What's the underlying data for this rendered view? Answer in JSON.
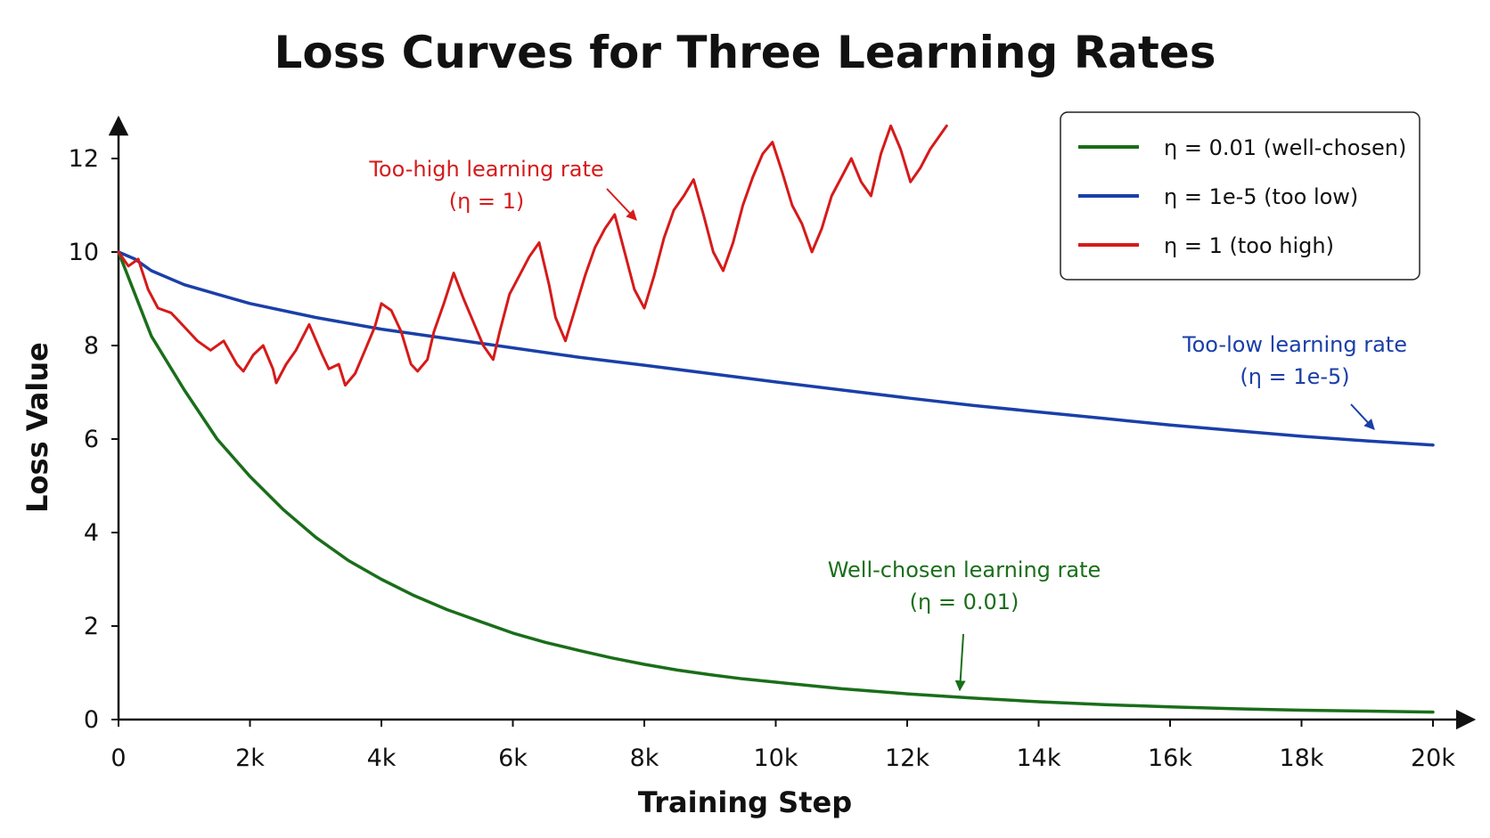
{
  "chart_data": {
    "type": "line",
    "title": "Loss Curves for Three Learning Rates",
    "xlabel": "Training Step",
    "ylabel": "Loss Value",
    "xlim": [
      0,
      20000
    ],
    "ylim": [
      0,
      13
    ],
    "x_ticks": [
      {
        "value": 0,
        "label": "0"
      },
      {
        "value": 2000,
        "label": "2k"
      },
      {
        "value": 4000,
        "label": "4k"
      },
      {
        "value": 6000,
        "label": "6k"
      },
      {
        "value": 8000,
        "label": "8k"
      },
      {
        "value": 10000,
        "label": "10k"
      },
      {
        "value": 12000,
        "label": "12k"
      },
      {
        "value": 14000,
        "label": "14k"
      },
      {
        "value": 16000,
        "label": "16k"
      },
      {
        "value": 18000,
        "label": "18k"
      },
      {
        "value": 20000,
        "label": "20k"
      }
    ],
    "y_ticks": [
      {
        "value": 0,
        "label": "0"
      },
      {
        "value": 2,
        "label": "2"
      },
      {
        "value": 4,
        "label": "4"
      },
      {
        "value": 6,
        "label": "6"
      },
      {
        "value": 8,
        "label": "8"
      },
      {
        "value": 10,
        "label": "10"
      },
      {
        "value": 12,
        "label": "12"
      }
    ],
    "grid": false,
    "legend_position": "top-right",
    "series": [
      {
        "name": "η = 0.01 (well-chosen)",
        "color": "#1a6e1a",
        "x": [
          0,
          500,
          1000,
          1500,
          2000,
          2500,
          3000,
          3500,
          4000,
          4500,
          5000,
          5500,
          6000,
          6500,
          7000,
          7500,
          8000,
          8500,
          9000,
          9500,
          10000,
          11000,
          12000,
          13000,
          14000,
          15000,
          16000,
          17000,
          18000,
          19000,
          20000
        ],
        "y": [
          10.0,
          8.2,
          7.05,
          6.0,
          5.2,
          4.5,
          3.9,
          3.4,
          3.0,
          2.65,
          2.35,
          2.1,
          1.85,
          1.65,
          1.48,
          1.32,
          1.18,
          1.06,
          0.96,
          0.87,
          0.8,
          0.66,
          0.55,
          0.46,
          0.38,
          0.32,
          0.27,
          0.23,
          0.2,
          0.18,
          0.16
        ]
      },
      {
        "name": "η = 1e-5 (too low)",
        "color": "#1a3fa8",
        "x": [
          0,
          250,
          500,
          1000,
          1500,
          2000,
          3000,
          4000,
          5000,
          6000,
          7000,
          8000,
          9000,
          10000,
          11000,
          12000,
          13000,
          14000,
          15000,
          16000,
          17000,
          18000,
          19000,
          20000
        ],
        "y": [
          10.0,
          9.85,
          9.6,
          9.3,
          9.1,
          8.9,
          8.6,
          8.35,
          8.15,
          7.95,
          7.75,
          7.58,
          7.4,
          7.22,
          7.05,
          6.88,
          6.72,
          6.58,
          6.44,
          6.3,
          6.18,
          6.06,
          5.96,
          5.87
        ]
      },
      {
        "name": "η = 1 (too high)",
        "color": "#d61a1a",
        "x": [
          0,
          150,
          300,
          450,
          600,
          800,
          1000,
          1200,
          1400,
          1600,
          1800,
          1900,
          2050,
          2200,
          2350,
          2400,
          2550,
          2700,
          2900,
          3100,
          3200,
          3350,
          3450,
          3600,
          3750,
          3900,
          4000,
          4150,
          4300,
          4450,
          4550,
          4700,
          4800,
          4950,
          5100,
          5250,
          5400,
          5550,
          5700,
          5800,
          5950,
          6100,
          6250,
          6400,
          6550,
          6650,
          6800,
          6950,
          7100,
          7250,
          7400,
          7550,
          7700,
          7850,
          8000,
          8150,
          8300,
          8450,
          8600,
          8750,
          8900,
          9050,
          9200,
          9350,
          9500,
          9650,
          9800,
          9950,
          10100,
          10250,
          10400,
          10550,
          10700,
          10850,
          11000,
          11150,
          11300,
          11450,
          11600,
          11750,
          11900,
          12050,
          12200,
          12350,
          12500,
          12600
        ],
        "y": [
          10.0,
          9.7,
          9.85,
          9.2,
          8.8,
          8.7,
          8.4,
          8.1,
          7.9,
          8.1,
          7.6,
          7.45,
          7.8,
          8.0,
          7.5,
          7.2,
          7.6,
          7.9,
          8.45,
          7.8,
          7.5,
          7.6,
          7.15,
          7.4,
          7.9,
          8.4,
          8.9,
          8.75,
          8.3,
          7.6,
          7.45,
          7.7,
          8.3,
          8.9,
          9.55,
          9.0,
          8.5,
          8.0,
          7.7,
          8.3,
          9.1,
          9.5,
          9.9,
          10.2,
          9.3,
          8.6,
          8.1,
          8.8,
          9.5,
          10.1,
          10.5,
          10.8,
          10.0,
          9.2,
          8.8,
          9.5,
          10.3,
          10.9,
          11.2,
          11.55,
          10.8,
          10.0,
          9.6,
          10.2,
          11.0,
          11.6,
          12.1,
          12.35,
          11.7,
          11.0,
          10.6,
          10.0,
          10.5,
          11.2,
          11.6,
          12.0,
          11.5,
          11.2,
          12.1,
          12.7,
          12.2,
          11.5,
          11.8,
          12.2,
          12.5,
          12.7
        ]
      }
    ],
    "annotations": [
      {
        "id": "high",
        "line1": "Too-high learning rate",
        "line2": "(η = 1)",
        "color": "#d61a1a"
      },
      {
        "id": "low",
        "line1": "Too-low learning rate",
        "line2": "(η = 1e-5)",
        "color": "#1a3fa8"
      },
      {
        "id": "good",
        "line1": "Well-chosen learning rate",
        "line2": "(η = 0.01)",
        "color": "#1a6e1a"
      }
    ]
  }
}
